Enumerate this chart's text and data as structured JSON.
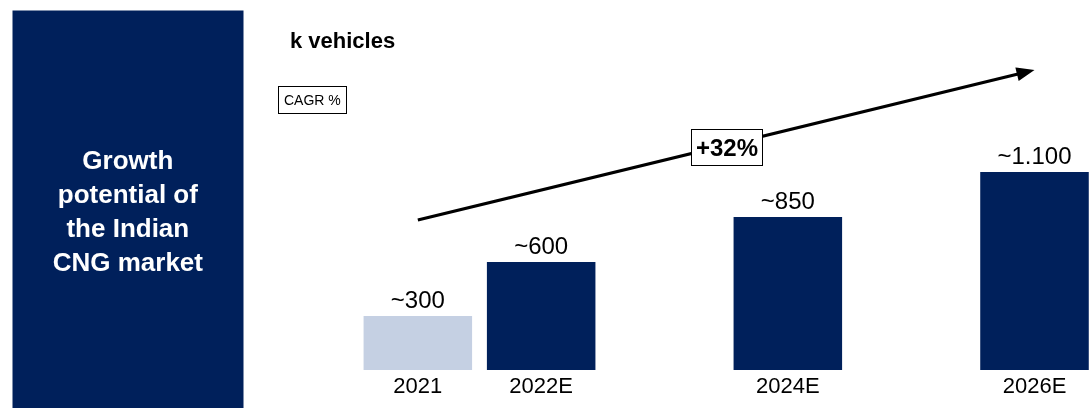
{
  "chart_data": {
    "type": "bar",
    "title": "Growth potential of the Indian CNG market",
    "categories": [
      "2021",
      "2022E",
      null,
      "2024E",
      null,
      "2026E"
    ],
    "values": [
      300,
      600,
      null,
      850,
      null,
      1100
    ],
    "value_labels": [
      "~300",
      "~600",
      null,
      "~850",
      null,
      "~1.100"
    ],
    "colors": [
      "#c5d0e3",
      "#00205b",
      "#00205b",
      "#00205b",
      "#00205b",
      "#00205b"
    ],
    "annotations": [
      "k vehicles",
      "CAGR %",
      "+32%"
    ],
    "legend": false
  }
}
